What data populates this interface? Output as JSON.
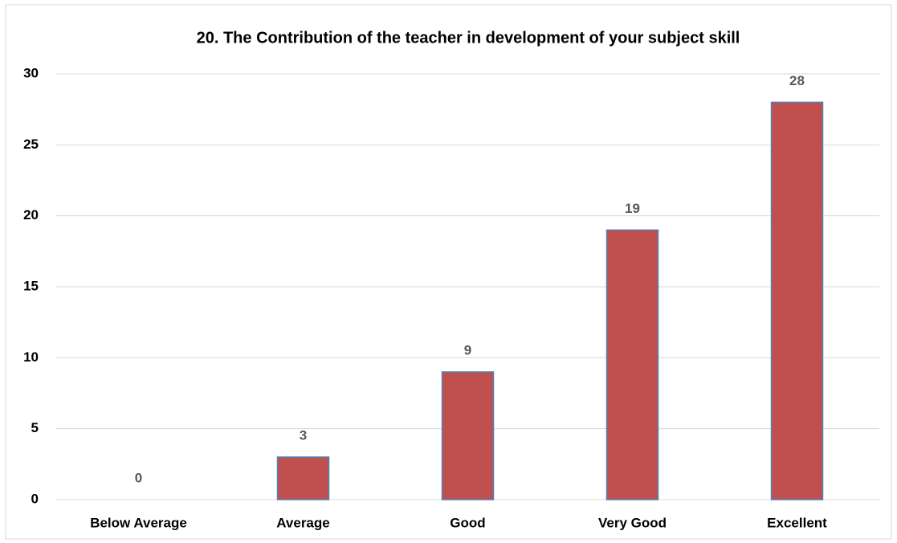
{
  "chart_data": {
    "type": "bar",
    "title": "20.  The Contribution of the teacher in development of your subject skill",
    "categories": [
      "Below Average",
      "Average",
      "Good",
      "Very Good",
      "Excellent"
    ],
    "values": [
      0,
      3,
      9,
      19,
      28
    ],
    "color": "#c0504d",
    "edge_color": "#4f81bd",
    "ylim": [
      0,
      30
    ],
    "yticks": [
      0,
      5,
      10,
      15,
      20,
      25,
      30
    ],
    "grid": true,
    "data_labels": true
  }
}
